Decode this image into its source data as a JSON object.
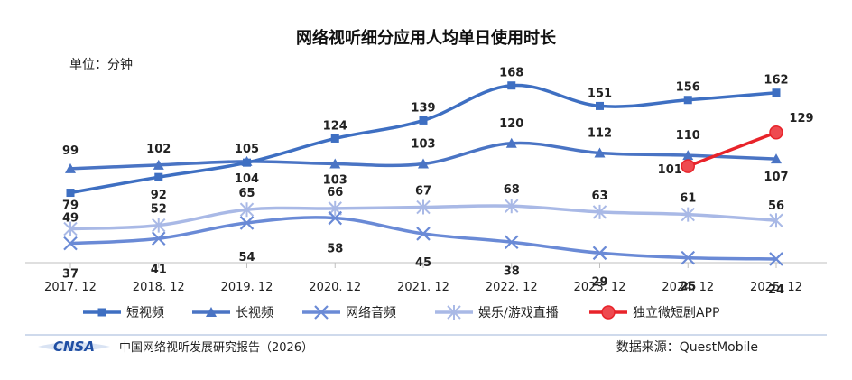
{
  "chart_data": {
    "type": "line",
    "title": "网络视听细分应用人均单日使用时长",
    "unit_label": "单位：分钟",
    "categories": [
      "2017. 12",
      "2018. 12",
      "2019. 12",
      "2020. 12",
      "2021. 12",
      "2022. 12",
      "2023. 12",
      "2024. 12",
      "2025. 12"
    ],
    "ylim": [
      0,
      190
    ],
    "grid": false,
    "legend_position": "bottom",
    "series": [
      {
        "name": "短视频",
        "marker": "square",
        "color": "#3e6fc2",
        "values": [
          79,
          92,
          104,
          124,
          139,
          168,
          151,
          156,
          162
        ]
      },
      {
        "name": "长视频",
        "marker": "triangle",
        "color": "#4a74c4",
        "values": [
          99,
          102,
          105,
          103,
          103,
          120,
          112,
          110,
          107
        ]
      },
      {
        "name": "网络音频",
        "marker": "x",
        "color": "#6a8ad6",
        "values": [
          37,
          41,
          54,
          58,
          45,
          38,
          29,
          25,
          24
        ]
      },
      {
        "name": "娱乐/游戏直播",
        "marker": "star",
        "color": "#a9b9e6",
        "values": [
          49,
          52,
          65,
          66,
          67,
          68,
          63,
          61,
          56
        ]
      },
      {
        "name": "独立微短剧APP",
        "marker": "circle",
        "color": "#e8232a",
        "values": [
          null,
          null,
          null,
          null,
          null,
          null,
          null,
          101,
          129
        ]
      }
    ]
  },
  "footer": {
    "logo_text": "CNSA",
    "report": "中国网络视听发展研究报告（2026）",
    "source": "数据来源：QuestMobile"
  }
}
